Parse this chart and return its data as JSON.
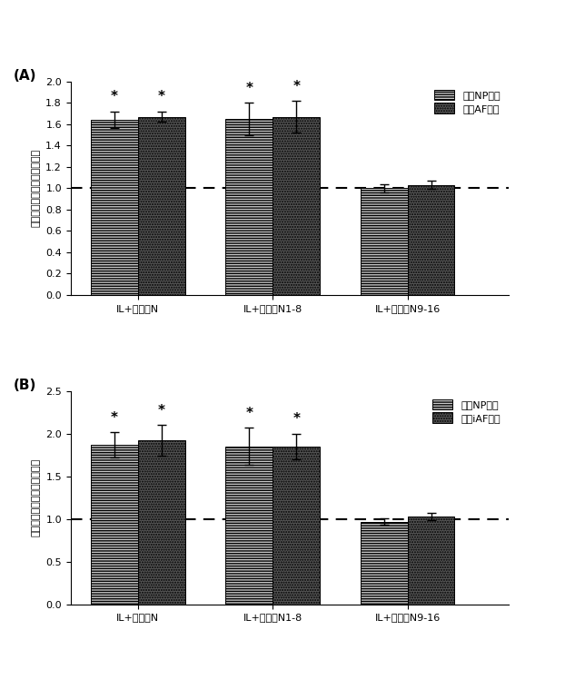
{
  "panel_A": {
    "title": "(A)",
    "categories": [
      "IL+リンクN",
      "IL+リンクN1-8",
      "IL+リンクN9-16"
    ],
    "np_values": [
      1.64,
      1.65,
      1.0
    ],
    "af_values": [
      1.67,
      1.67,
      1.03
    ],
    "np_errors": [
      0.08,
      0.15,
      0.04
    ],
    "af_errors": [
      0.05,
      0.15,
      0.04
    ],
    "np_sig": [
      true,
      true,
      false
    ],
    "af_sig": [
      true,
      true,
      false
    ],
    "ylabel": "正規化プロテオグリカン合成",
    "ylim": [
      0,
      2.0
    ],
    "yticks": [
      0,
      0.2,
      0.4,
      0.6,
      0.8,
      1.0,
      1.2,
      1.4,
      1.6,
      1.8,
      2.0
    ],
    "legend_labels": [
      "ウシNP細胞",
      "ウシAF細胞"
    ],
    "dashed_line": 1.0
  },
  "panel_B": {
    "title": "(B)",
    "categories": [
      "IL+リンクN",
      "IL+リンクN1-8",
      "IL+リンクN9-16"
    ],
    "np_values": [
      1.87,
      1.85,
      0.97
    ],
    "af_values": [
      1.92,
      1.85,
      1.03
    ],
    "np_errors": [
      0.15,
      0.22,
      0.04
    ],
    "af_errors": [
      0.18,
      0.15,
      0.04
    ],
    "np_sig": [
      true,
      true,
      false
    ],
    "af_sig": [
      true,
      true,
      false
    ],
    "ylabel": "正規化プロテオグリカン合成",
    "ylim": [
      0,
      2.5
    ],
    "yticks": [
      0,
      0.5,
      1.0,
      1.5,
      2.0,
      2.5
    ],
    "legend_labels": [
      "ヒトNP細胞",
      "ヒトiAF細胞"
    ],
    "dashed_line": 1.0
  },
  "bar_width": 0.28,
  "x_positions": [
    0.3,
    1.1,
    1.9
  ],
  "xlim": [
    -0.1,
    2.5
  ],
  "xlabel_fontsize": 8,
  "ylabel_fontsize": 8,
  "tick_fontsize": 8,
  "legend_fontsize": 8,
  "title_fontsize": 11,
  "star_fontsize": 11
}
